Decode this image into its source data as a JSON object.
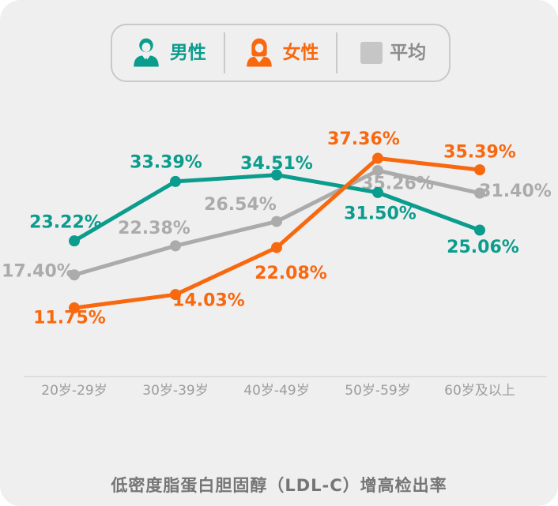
{
  "title": "低密度脂蛋白胆固醇（LDL-C）增高检出率",
  "legend": {
    "male_label": "男性",
    "female_label": "女性",
    "average_label": "平均"
  },
  "colors": {
    "male": "#0a9c8c",
    "female": "#f8680f",
    "average_line": "#ababab",
    "average_swatch": "#c6c6c6",
    "average_text": "#8d8d8d",
    "axis_label": "#9c9c9c",
    "axis_line": "#dddddd",
    "title_text": "#757575",
    "card_bg": "#f0efef",
    "legend_border": "#c9c9c9"
  },
  "chart_data": {
    "type": "line",
    "categories": [
      "20岁-29岁",
      "30岁-39岁",
      "40岁-49岁",
      "50岁-59岁",
      "60岁及以上"
    ],
    "series": [
      {
        "key": "male",
        "name": "男性",
        "color": "#0a9c8c",
        "values": [
          23.22,
          33.39,
          34.51,
          31.5,
          25.06
        ]
      },
      {
        "key": "female",
        "name": "女性",
        "color": "#f8680f",
        "values": [
          11.75,
          14.03,
          22.08,
          37.36,
          35.39
        ]
      },
      {
        "key": "average",
        "name": "平均",
        "color": "#ababab",
        "values": [
          17.4,
          22.38,
          26.54,
          35.26,
          31.4
        ]
      }
    ],
    "value_suffix": "%",
    "xlabel": "",
    "ylabel": "",
    "ylim": [
      0,
      43
    ],
    "grid": false,
    "legend_position": "top",
    "value_labels_shown": true
  }
}
